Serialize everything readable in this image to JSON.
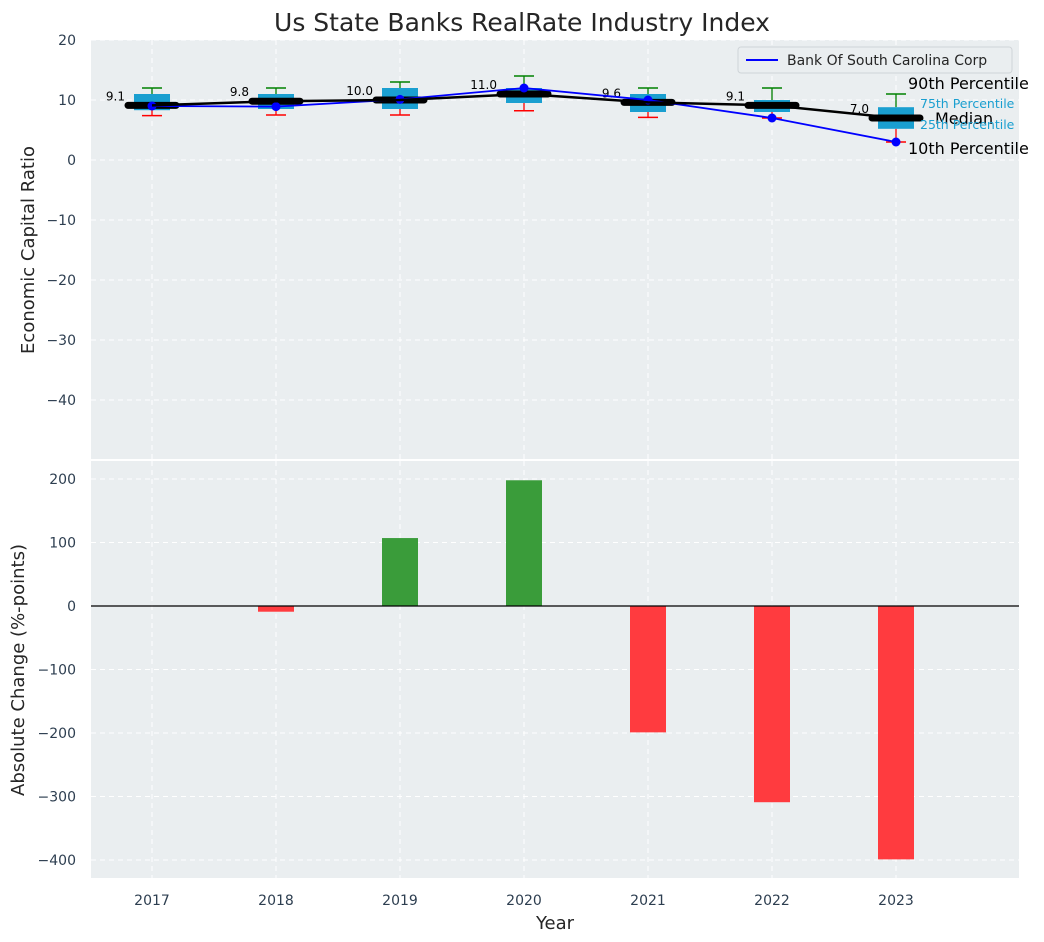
{
  "chart_data": [
    {
      "type": "box",
      "title": "Us State Banks RealRate Industry Index",
      "xlabel": "",
      "ylabel": "Economic Capital Ratio",
      "ylim": [
        -50,
        20
      ],
      "yticks": [
        20,
        10,
        0,
        -10,
        -20,
        -30,
        -40
      ],
      "categories": [
        "2017",
        "2018",
        "2019",
        "2020",
        "2021",
        "2022",
        "2023"
      ],
      "percentiles": {
        "p10": [
          7.4,
          7.5,
          7.5,
          8.2,
          7.1,
          7.0,
          3.0
        ],
        "p25": [
          8.3,
          8.5,
          8.5,
          9.5,
          8.0,
          8.0,
          5.2
        ],
        "median": [
          9.1,
          9.8,
          10.0,
          11.0,
          9.6,
          9.1,
          7.0
        ],
        "p75": [
          11.0,
          11.0,
          12.0,
          12.0,
          11.0,
          10.0,
          8.8
        ],
        "p90": [
          12.0,
          12.0,
          13.0,
          14.0,
          12.0,
          12.0,
          11.0
        ]
      },
      "median_labels": [
        "9.1",
        "9.8",
        "10.0",
        "11.0",
        "9.6",
        "9.1",
        "7.0"
      ],
      "series": [
        {
          "name": "Bank Of South Carolina Corp",
          "values": [
            9.0,
            8.9,
            10.1,
            12.0,
            10.0,
            7.0,
            3.0
          ],
          "color": "#0000ff"
        }
      ],
      "legend": {
        "position": "top-right",
        "entries": [
          "Bank Of South Carolina Corp"
        ]
      },
      "annotations": {
        "p90": "90th Percentile",
        "p75": "75th Percentile",
        "median": "Median",
        "p25": "25th Percentile",
        "p10": "10th Percentile"
      }
    },
    {
      "type": "bar",
      "xlabel": "Year",
      "ylabel": "Absolute Change (%-points)",
      "ylim": [
        -430,
        230
      ],
      "yticks": [
        200,
        100,
        0,
        -100,
        -200,
        -300,
        -400
      ],
      "categories": [
        "2017",
        "2018",
        "2019",
        "2020",
        "2021",
        "2022",
        "2023"
      ],
      "values": [
        0,
        -9,
        107,
        198,
        -199,
        -309,
        -399
      ],
      "positive_color": "#3a9c3a",
      "negative_color": "#ff3b3f"
    }
  ],
  "colors": {
    "plot_bg": "#eaeef0",
    "box": "#1a9fd0",
    "median": "#000000",
    "whisker_high": "#008000",
    "whisker_low": "#ff0000"
  }
}
